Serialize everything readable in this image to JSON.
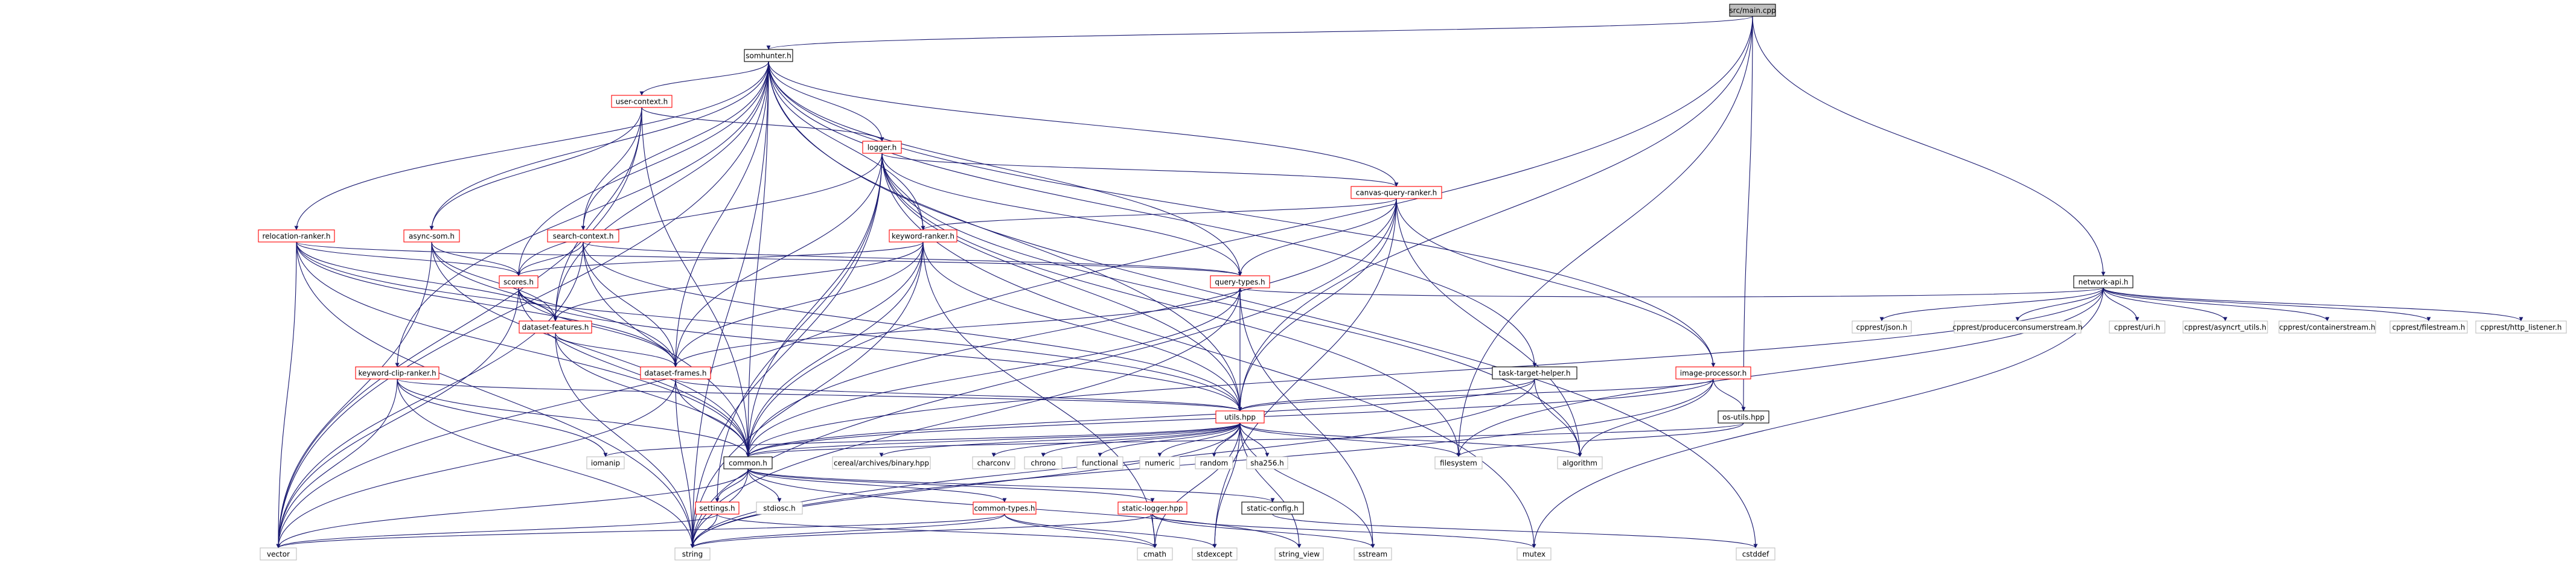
{
  "graph": {
    "colors": {
      "edge": "#191970",
      "root_fill": "#bfbfbf",
      "root_border": "#000000",
      "project_border": "#ff0000",
      "local_border": "#000000",
      "external_border": "#bfbfbf",
      "fill": "#ffffff"
    },
    "nodes": [
      {
        "id": "main",
        "label": "src/main.cpp",
        "kind": "root"
      },
      {
        "id": "somhunter",
        "label": "somhunter.h",
        "kind": "local"
      },
      {
        "id": "usercontext",
        "label": "user-context.h",
        "kind": "project"
      },
      {
        "id": "logger",
        "label": "logger.h",
        "kind": "project"
      },
      {
        "id": "canvas",
        "label": "canvas-query-ranker.h",
        "kind": "project"
      },
      {
        "id": "keyword",
        "label": "keyword-ranker.h",
        "kind": "project"
      },
      {
        "id": "relocation",
        "label": "relocation-ranker.h",
        "kind": "project"
      },
      {
        "id": "asyncsom",
        "label": "async-som.h",
        "kind": "project"
      },
      {
        "id": "searchctx",
        "label": "search-context.h",
        "kind": "project"
      },
      {
        "id": "scores",
        "label": "scores.h",
        "kind": "project"
      },
      {
        "id": "dsfeatures",
        "label": "dataset-features.h",
        "kind": "project"
      },
      {
        "id": "dsframes",
        "label": "dataset-frames.h",
        "kind": "project"
      },
      {
        "id": "querytypes",
        "label": "query-types.h",
        "kind": "project"
      },
      {
        "id": "keywordclip",
        "label": "keyword-clip-ranker.h",
        "kind": "project"
      },
      {
        "id": "tasktarget",
        "label": "task-target-helper.h",
        "kind": "local"
      },
      {
        "id": "imageproc",
        "label": "image-processor.h",
        "kind": "project"
      },
      {
        "id": "osutils",
        "label": "os-utils.hpp",
        "kind": "local"
      },
      {
        "id": "networkapi",
        "label": "network-api.h",
        "kind": "local"
      },
      {
        "id": "utils",
        "label": "utils.hpp",
        "kind": "project"
      },
      {
        "id": "common",
        "label": "common.h",
        "kind": "local"
      },
      {
        "id": "settings",
        "label": "settings.h",
        "kind": "project"
      },
      {
        "id": "commontypes",
        "label": "common-types.h",
        "kind": "project"
      },
      {
        "id": "staticlogger",
        "label": "static-logger.hpp",
        "kind": "project"
      },
      {
        "id": "staticconfig",
        "label": "static-config.h",
        "kind": "local"
      },
      {
        "id": "cpprestjson",
        "label": "cpprest/json.h",
        "kind": "external"
      },
      {
        "id": "cpprestpc",
        "label": "cpprest/producerconsumerstream.h",
        "kind": "external"
      },
      {
        "id": "cpprestatomic",
        "label": "cpprest/uri.h",
        "kind": "external"
      },
      {
        "id": "cpprestasync",
        "label": "cpprest/asyncrt_utils.h",
        "kind": "external"
      },
      {
        "id": "cpprestcs",
        "label": "cpprest/containerstream.h",
        "kind": "external"
      },
      {
        "id": "cpprestfs",
        "label": "cpprest/filestream.h",
        "kind": "external"
      },
      {
        "id": "cpprestlistener",
        "label": "cpprest/http_listener.h",
        "kind": "external"
      },
      {
        "id": "iomanip",
        "label": "iomanip",
        "kind": "external"
      },
      {
        "id": "cereal",
        "label": "cereal/archives/binary.hpp",
        "kind": "external"
      },
      {
        "id": "charconv",
        "label": "charconv",
        "kind": "external"
      },
      {
        "id": "chrono",
        "label": "chrono",
        "kind": "external"
      },
      {
        "id": "functional",
        "label": "functional",
        "kind": "external"
      },
      {
        "id": "numeric",
        "label": "numeric",
        "kind": "external"
      },
      {
        "id": "random",
        "label": "random",
        "kind": "external"
      },
      {
        "id": "sha256",
        "label": "sha256.h",
        "kind": "external"
      },
      {
        "id": "filesystem",
        "label": "filesystem",
        "kind": "external"
      },
      {
        "id": "algorithm",
        "label": "algorithm",
        "kind": "external"
      },
      {
        "id": "vector",
        "label": "vector",
        "kind": "external"
      },
      {
        "id": "string",
        "label": "string",
        "kind": "external"
      },
      {
        "id": "stdexcept",
        "label": "stdexcept",
        "kind": "external"
      },
      {
        "id": "cmath",
        "label": "cmath",
        "kind": "external"
      },
      {
        "id": "stringview",
        "label": "string_view",
        "kind": "external"
      },
      {
        "id": "sstream",
        "label": "sstream",
        "kind": "external"
      },
      {
        "id": "mutex",
        "label": "mutex",
        "kind": "external"
      },
      {
        "id": "cstddef",
        "label": "cstddef",
        "kind": "external"
      },
      {
        "id": "stdioss",
        "label": "stdiosc.h",
        "kind": "external"
      }
    ],
    "edges": [
      [
        "main",
        "somhunter"
      ],
      [
        "main",
        "networkapi"
      ],
      [
        "main",
        "osutils"
      ],
      [
        "main",
        "utils"
      ],
      [
        "main",
        "common"
      ],
      [
        "main",
        "filesystem"
      ],
      [
        "somhunter",
        "usercontext"
      ],
      [
        "somhunter",
        "logger"
      ],
      [
        "somhunter",
        "canvas"
      ],
      [
        "somhunter",
        "keyword"
      ],
      [
        "somhunter",
        "relocation"
      ],
      [
        "somhunter",
        "asyncsom"
      ],
      [
        "somhunter",
        "searchctx"
      ],
      [
        "somhunter",
        "scores"
      ],
      [
        "somhunter",
        "dsfeatures"
      ],
      [
        "somhunter",
        "dsframes"
      ],
      [
        "somhunter",
        "querytypes"
      ],
      [
        "somhunter",
        "keywordclip"
      ],
      [
        "somhunter",
        "tasktarget"
      ],
      [
        "somhunter",
        "imageproc"
      ],
      [
        "somhunter",
        "utils"
      ],
      [
        "somhunter",
        "common"
      ],
      [
        "somhunter",
        "vector"
      ],
      [
        "somhunter",
        "string"
      ],
      [
        "somhunter",
        "cstddef"
      ],
      [
        "usercontext",
        "logger"
      ],
      [
        "usercontext",
        "asyncsom"
      ],
      [
        "usercontext",
        "searchctx"
      ],
      [
        "usercontext",
        "dsfeatures"
      ],
      [
        "usercontext",
        "common"
      ],
      [
        "usercontext",
        "vector"
      ],
      [
        "logger",
        "canvas"
      ],
      [
        "logger",
        "keyword"
      ],
      [
        "logger",
        "scores"
      ],
      [
        "logger",
        "dsframes"
      ],
      [
        "logger",
        "querytypes"
      ],
      [
        "logger",
        "utils"
      ],
      [
        "logger",
        "common"
      ],
      [
        "logger",
        "settings"
      ],
      [
        "logger",
        "string"
      ],
      [
        "logger",
        "filesystem"
      ],
      [
        "logger",
        "mutex"
      ],
      [
        "logger",
        "algorithm"
      ],
      [
        "canvas",
        "keyword"
      ],
      [
        "canvas",
        "querytypes"
      ],
      [
        "canvas",
        "imageproc"
      ],
      [
        "canvas",
        "utils"
      ],
      [
        "canvas",
        "common"
      ],
      [
        "canvas",
        "algorithm"
      ],
      [
        "canvas",
        "string"
      ],
      [
        "canvas",
        "stdexcept"
      ],
      [
        "keyword",
        "scores"
      ],
      [
        "keyword",
        "dsfeatures"
      ],
      [
        "keyword",
        "dsframes"
      ],
      [
        "keyword",
        "utils"
      ],
      [
        "keyword",
        "common"
      ],
      [
        "keyword",
        "vector"
      ],
      [
        "keyword",
        "string"
      ],
      [
        "keyword",
        "cmath"
      ],
      [
        "relocation",
        "scores"
      ],
      [
        "relocation",
        "dsfeatures"
      ],
      [
        "relocation",
        "dsframes"
      ],
      [
        "relocation",
        "querytypes"
      ],
      [
        "relocation",
        "utils"
      ],
      [
        "relocation",
        "common"
      ],
      [
        "relocation",
        "vector"
      ],
      [
        "relocation",
        "string"
      ],
      [
        "asyncsom",
        "scores"
      ],
      [
        "asyncsom",
        "dsfeatures"
      ],
      [
        "asyncsom",
        "dsframes"
      ],
      [
        "asyncsom",
        "common"
      ],
      [
        "asyncsom",
        "vector"
      ],
      [
        "searchctx",
        "scores"
      ],
      [
        "searchctx",
        "dsframes"
      ],
      [
        "searchctx",
        "querytypes"
      ],
      [
        "searchctx",
        "utils"
      ],
      [
        "searchctx",
        "common"
      ],
      [
        "searchctx",
        "vector"
      ],
      [
        "scores",
        "dsfeatures"
      ],
      [
        "scores",
        "dsframes"
      ],
      [
        "scores",
        "utils"
      ],
      [
        "scores",
        "common"
      ],
      [
        "scores",
        "vector"
      ],
      [
        "dsfeatures",
        "dsframes"
      ],
      [
        "dsfeatures",
        "common"
      ],
      [
        "dsfeatures",
        "string"
      ],
      [
        "dsframes",
        "utils"
      ],
      [
        "dsframes",
        "common"
      ],
      [
        "dsframes",
        "vector"
      ],
      [
        "dsframes",
        "string"
      ],
      [
        "querytypes",
        "dsframes"
      ],
      [
        "querytypes",
        "utils"
      ],
      [
        "querytypes",
        "common"
      ],
      [
        "querytypes",
        "string"
      ],
      [
        "querytypes",
        "sstream"
      ],
      [
        "keywordclip",
        "utils"
      ],
      [
        "keywordclip",
        "common"
      ],
      [
        "keywordclip",
        "vector"
      ],
      [
        "keywordclip",
        "string"
      ],
      [
        "keywordclip",
        "iomanip"
      ],
      [
        "tasktarget",
        "utils"
      ],
      [
        "tasktarget",
        "common"
      ],
      [
        "tasktarget",
        "string"
      ],
      [
        "tasktarget",
        "algorithm"
      ],
      [
        "imageproc",
        "utils"
      ],
      [
        "imageproc",
        "osutils"
      ],
      [
        "imageproc",
        "common"
      ],
      [
        "imageproc",
        "string"
      ],
      [
        "imageproc",
        "algorithm"
      ],
      [
        "osutils",
        "filesystem"
      ],
      [
        "osutils",
        "common"
      ],
      [
        "networkapi",
        "querytypes"
      ],
      [
        "networkapi",
        "cpprestjson"
      ],
      [
        "networkapi",
        "cpprestpc"
      ],
      [
        "networkapi",
        "cpprestatomic"
      ],
      [
        "networkapi",
        "cpprestasync"
      ],
      [
        "networkapi",
        "cpprestcs"
      ],
      [
        "networkapi",
        "cpprestfs"
      ],
      [
        "networkapi",
        "cpprestlistener"
      ],
      [
        "networkapi",
        "common"
      ],
      [
        "networkapi",
        "mutex"
      ],
      [
        "networkapi",
        "filesystem"
      ],
      [
        "utils",
        "common"
      ],
      [
        "utils",
        "iomanip"
      ],
      [
        "utils",
        "cereal"
      ],
      [
        "utils",
        "charconv"
      ],
      [
        "utils",
        "chrono"
      ],
      [
        "utils",
        "functional"
      ],
      [
        "utils",
        "numeric"
      ],
      [
        "utils",
        "random"
      ],
      [
        "utils",
        "sha256"
      ],
      [
        "utils",
        "filesystem"
      ],
      [
        "utils",
        "algorithm"
      ],
      [
        "utils",
        "string"
      ],
      [
        "utils",
        "stringview"
      ],
      [
        "utils",
        "sstream"
      ],
      [
        "utils",
        "cmath"
      ],
      [
        "utils",
        "stdexcept"
      ],
      [
        "common",
        "settings"
      ],
      [
        "common",
        "stdioss"
      ],
      [
        "common",
        "commontypes"
      ],
      [
        "common",
        "staticlogger"
      ],
      [
        "common",
        "staticconfig"
      ],
      [
        "common",
        "string"
      ],
      [
        "common",
        "vector"
      ],
      [
        "common",
        "stringview"
      ],
      [
        "settings",
        "vector"
      ],
      [
        "settings",
        "string"
      ],
      [
        "settings",
        "cmath"
      ],
      [
        "commontypes",
        "vector"
      ],
      [
        "commontypes",
        "string"
      ],
      [
        "commontypes",
        "stdexcept"
      ],
      [
        "commontypes",
        "cmath"
      ],
      [
        "staticlogger",
        "string"
      ],
      [
        "staticlogger",
        "sstream"
      ],
      [
        "staticlogger",
        "mutex"
      ],
      [
        "staticlogger",
        "cmath"
      ],
      [
        "staticconfig",
        "cstddef"
      ]
    ]
  }
}
